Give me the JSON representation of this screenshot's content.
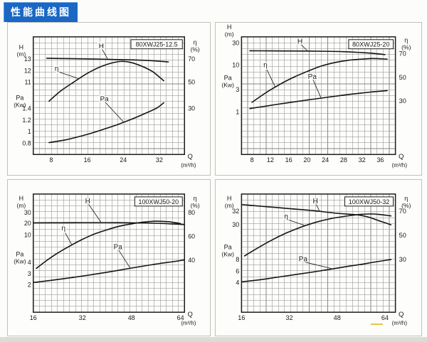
{
  "page": {
    "title": "性能曲线图",
    "title_bg": "#1a67c4",
    "title_color": "#ffffff",
    "artifact_mark_color": "#e8c24a"
  },
  "chart_data": [
    {
      "type": "line",
      "model": "80XWJ25-12.5",
      "x_axis": {
        "label": "Q",
        "unit": "(m³/h)",
        "ticks": [
          8,
          16,
          24,
          32
        ],
        "range": [
          4,
          37.6
        ]
      },
      "left_axis": {
        "h_title": [
          "H",
          "(m)"
        ],
        "h_title_f": 0.07,
        "h_ticks": [
          [
            "13",
            0.19
          ],
          [
            "12",
            0.288
          ],
          [
            "11",
            0.385
          ]
        ],
        "pa_title": [
          "Pa",
          "(Kw)"
        ],
        "pa_title_f": 0.5,
        "pa_ticks": [
          [
            "1.4",
            0.609
          ],
          [
            "1.2",
            0.707
          ],
          [
            "1",
            0.806
          ],
          [
            "0.8",
            0.904
          ]
        ]
      },
      "right_axis": {
        "title": [
          "η",
          "(%)"
        ],
        "title_f": 0.03,
        "ticks": [
          [
            "70",
            0.19
          ],
          [
            "50",
            0.385
          ],
          [
            "30",
            0.61
          ]
        ]
      },
      "series": [
        {
          "name": "H",
          "unit": "m",
          "scale": "linear",
          "anchors": [
            [
              13,
              0.19
            ],
            [
              11,
              0.385
            ]
          ],
          "points": [
            [
              7,
              13.08
            ],
            [
              12,
              13.05
            ],
            [
              17,
              13.02
            ],
            [
              22,
              12.98
            ],
            [
              26,
              12.94
            ],
            [
              30,
              12.88
            ],
            [
              34,
              12.76
            ]
          ],
          "label_at": [
            0.45,
            0.08
          ],
          "leader_q": 20.5
        },
        {
          "name": "η",
          "unit": "%",
          "scale": "linear",
          "anchors": [
            [
              70,
              0.19
            ],
            [
              30,
              0.61
            ]
          ],
          "points": [
            [
              7.5,
              36
            ],
            [
              10,
              44
            ],
            [
              13,
              51.5
            ],
            [
              16,
              58.5
            ],
            [
              19,
              64
            ],
            [
              21.5,
              67
            ],
            [
              23.5,
              68.2
            ],
            [
              25.5,
              67.5
            ],
            [
              28,
              64.5
            ],
            [
              30.5,
              60
            ],
            [
              33,
              52.5
            ]
          ],
          "label_at": [
            0.155,
            0.27
          ],
          "leader_q": 14
        },
        {
          "name": "Pa",
          "unit": "kW",
          "scale": "linear",
          "anchors": [
            [
              1.4,
              0.609
            ],
            [
              0.8,
              0.904
            ]
          ],
          "points": [
            [
              7.5,
              0.81
            ],
            [
              11,
              0.855
            ],
            [
              14,
              0.91
            ],
            [
              17,
              0.975
            ],
            [
              20,
              1.05
            ],
            [
              23,
              1.13
            ],
            [
              26,
              1.22
            ],
            [
              29,
              1.32
            ],
            [
              31.5,
              1.41
            ],
            [
              33,
              1.5
            ]
          ],
          "label_at": [
            0.47,
            0.53
          ],
          "leader_q": 24
        }
      ]
    },
    {
      "type": "line",
      "model": "80XWJ25-20",
      "x_axis": {
        "label": "Q",
        "unit": "(m³/h)",
        "ticks": [
          8,
          12,
          16,
          20,
          24,
          28,
          32,
          36
        ],
        "range": [
          5.7,
          39.3
        ]
      },
      "left_axis": {
        "h_title": [
          "H",
          "(m)"
        ],
        "h_title_f": -0.1,
        "h_ticks": [
          [
            "30",
            0.053
          ],
          [
            "10",
            0.241
          ]
        ],
        "pa_title": [
          "Pa",
          "(Kw)"
        ],
        "pa_title_f": 0.33,
        "pa_ticks": [
          [
            "3",
            0.449
          ],
          [
            "1",
            0.638
          ]
        ]
      },
      "right_axis": {
        "title": [
          "η",
          "(%)"
        ],
        "title_f": 0.01,
        "ticks": [
          [
            "70",
            0.144
          ],
          [
            "50",
            0.345
          ],
          [
            "30",
            0.546
          ]
        ]
      },
      "series": [
        {
          "name": "H",
          "unit": "m",
          "scale": "log",
          "anchors": [
            [
              30,
              0.053
            ],
            [
              1,
              0.638
            ]
          ],
          "points": [
            [
              7.5,
              20.5
            ],
            [
              12,
              20.4
            ],
            [
              16,
              20.3
            ],
            [
              20,
              20.2
            ],
            [
              24,
              20.0
            ],
            [
              28,
              19.6
            ],
            [
              31,
              19.0
            ],
            [
              34,
              18.2
            ],
            [
              37,
              17.0
            ]
          ],
          "label_at": [
            0.38,
            0.04
          ],
          "leader_q": 20
        },
        {
          "name": "η",
          "unit": "%",
          "scale": "linear",
          "anchors": [
            [
              70,
              0.144
            ],
            [
              30,
              0.546
            ]
          ],
          "points": [
            [
              8,
              29
            ],
            [
              11,
              37
            ],
            [
              14,
              44
            ],
            [
              17,
              50
            ],
            [
              20,
              55
            ],
            [
              23,
              59.5
            ],
            [
              26,
              62.5
            ],
            [
              29,
              64.5
            ],
            [
              32,
              65.5
            ],
            [
              34.5,
              66
            ],
            [
              37.5,
              65.5
            ]
          ],
          "label_at": [
            0.155,
            0.24
          ],
          "leader_q": 13
        },
        {
          "name": "Pa",
          "unit": "kW",
          "scale": "log",
          "anchors": [
            [
              30,
              0.053
            ],
            [
              1,
              0.638
            ]
          ],
          "points": [
            [
              7.5,
              1.18
            ],
            [
              11,
              1.33
            ],
            [
              14,
              1.48
            ],
            [
              17,
              1.63
            ],
            [
              20,
              1.8
            ],
            [
              23,
              1.97
            ],
            [
              26,
              2.16
            ],
            [
              29,
              2.36
            ],
            [
              32,
              2.55
            ],
            [
              34.5,
              2.7
            ],
            [
              37.5,
              2.87
            ]
          ],
          "label_at": [
            0.46,
            0.34
          ],
          "leader_q": 23
        }
      ]
    },
    {
      "type": "line",
      "model": "100XWJ50-20",
      "x_axis": {
        "label": "Q",
        "unit": "(m³/h)",
        "ticks": [
          16,
          32,
          48,
          64
        ],
        "range": [
          16,
          65.3
        ]
      },
      "left_axis": {
        "h_title": [
          "H",
          "(m)"
        ],
        "h_title_f": 0.02,
        "h_ticks": [
          [
            "30",
            0.157
          ],
          [
            "20",
            0.247
          ],
          [
            "10",
            0.346
          ]
        ],
        "pa_title": [
          "Pa",
          "(Kw)"
        ],
        "pa_title_f": 0.49,
        "pa_ticks": [
          [
            "4",
            0.579
          ],
          [
            "3",
            0.673
          ],
          [
            "2",
            0.767
          ]
        ]
      },
      "right_axis": {
        "title": [
          "η",
          "(%)"
        ],
        "title_f": 0.02,
        "ticks": [
          [
            "80",
            0.157
          ],
          [
            "60",
            0.358
          ],
          [
            "40",
            0.559
          ]
        ]
      },
      "series": [
        {
          "name": "H",
          "unit": "m",
          "scale": "linear",
          "anchors": [
            [
              30,
              0.157
            ],
            [
              10,
              0.346
            ]
          ],
          "points": [
            [
              16.2,
              20.8
            ],
            [
              24,
              20.9
            ],
            [
              32,
              21.0
            ],
            [
              40,
              21.0
            ],
            [
              46,
              20.9
            ],
            [
              52,
              20.7
            ],
            [
              57,
              20.4
            ],
            [
              61,
              19.9
            ],
            [
              65,
              19.3
            ]
          ],
          "label_at": [
            0.36,
            0.06
          ],
          "leader_q": 38
        },
        {
          "name": "η",
          "unit": "%",
          "scale": "linear",
          "anchors": [
            [
              80,
              0.157
            ],
            [
              40,
              0.559
            ]
          ],
          "points": [
            [
              17,
              33
            ],
            [
              20,
              39
            ],
            [
              24,
              46
            ],
            [
              28,
              52
            ],
            [
              32,
              57.5
            ],
            [
              36,
              62
            ],
            [
              40,
              65.5
            ],
            [
              44,
              68.5
            ],
            [
              48,
              70.5
            ],
            [
              52,
              72
            ],
            [
              56,
              72.8
            ],
            [
              60,
              72.3
            ],
            [
              64,
              70.8
            ]
          ],
          "label_at": [
            0.2,
            0.29
          ],
          "leader_q": 28.5
        },
        {
          "name": "Pa",
          "unit": "kW",
          "scale": "linear",
          "anchors": [
            [
              4,
              0.579
            ],
            [
              2,
              0.767
            ]
          ],
          "points": [
            [
              16.2,
              2.2
            ],
            [
              22,
              2.4
            ],
            [
              28,
              2.62
            ],
            [
              34,
              2.86
            ],
            [
              40,
              3.12
            ],
            [
              46,
              3.4
            ],
            [
              52,
              3.68
            ],
            [
              57,
              3.9
            ],
            [
              61,
              4.05
            ],
            [
              65,
              4.22
            ]
          ],
          "label_at": [
            0.56,
            0.45
          ],
          "leader_q": 47.5
        }
      ]
    },
    {
      "type": "line",
      "model": "100XWJ50-32",
      "x_axis": {
        "label": "Q",
        "unit": "(m³/h)",
        "ticks": [
          16,
          32,
          48,
          64
        ],
        "range": [
          16,
          67.5
        ]
      },
      "left_axis": {
        "h_title": [
          "H",
          "(m)"
        ],
        "h_title_f": 0.02,
        "h_ticks": [
          [
            "32",
            0.146
          ],
          [
            "30",
            0.26
          ]
        ],
        "pa_title": [
          "Pa",
          "(Kw)"
        ],
        "pa_title_f": 0.43,
        "pa_ticks": [
          [
            "8",
            0.554
          ],
          [
            "6",
            0.652
          ],
          [
            "4",
            0.75
          ]
        ]
      },
      "right_axis": {
        "title": [
          "η",
          "(%)"
        ],
        "title_f": 0.02,
        "ticks": [
          [
            "70",
            0.146
          ],
          [
            "50",
            0.35
          ],
          [
            "30",
            0.554
          ]
        ]
      },
      "series": [
        {
          "name": "H",
          "unit": "m",
          "scale": "linear",
          "anchors": [
            [
              32,
              0.146
            ],
            [
              30,
              0.26
            ]
          ],
          "points": [
            [
              16.3,
              33.0
            ],
            [
              24,
              32.7
            ],
            [
              32,
              32.4
            ],
            [
              40,
              32.1
            ],
            [
              48,
              31.7
            ],
            [
              54,
              31.5
            ],
            [
              58,
              31.2
            ],
            [
              62,
              30.6
            ],
            [
              66,
              30.0
            ]
          ],
          "label_at": [
            0.48,
            0.06
          ],
          "leader_q": 42
        },
        {
          "name": "η",
          "unit": "%",
          "scale": "linear",
          "anchors": [
            [
              70,
              0.146
            ],
            [
              30,
              0.554
            ]
          ],
          "points": [
            [
              17,
              33
            ],
            [
              21,
              39
            ],
            [
              26,
              46
            ],
            [
              31,
              52
            ],
            [
              36,
              57
            ],
            [
              41,
              61
            ],
            [
              46,
              64
            ],
            [
              51,
              66
            ],
            [
              55,
              67.3
            ],
            [
              59,
              67.8
            ],
            [
              62,
              67.4
            ],
            [
              66,
              66.2
            ]
          ],
          "label_at": [
            0.29,
            0.19
          ],
          "leader_q": 37
        },
        {
          "name": "Pa",
          "unit": "kW",
          "scale": "linear",
          "anchors": [
            [
              8,
              0.554
            ],
            [
              4,
              0.75
            ]
          ],
          "points": [
            [
              16.3,
              4.15
            ],
            [
              22,
              4.5
            ],
            [
              28,
              4.95
            ],
            [
              34,
              5.4
            ],
            [
              40,
              5.85
            ],
            [
              46,
              6.35
            ],
            [
              52,
              6.85
            ],
            [
              57,
              7.25
            ],
            [
              61,
              7.6
            ],
            [
              66,
              8.0
            ]
          ],
          "label_at": [
            0.4,
            0.55
          ],
          "leader_q": 46
        }
      ]
    }
  ]
}
